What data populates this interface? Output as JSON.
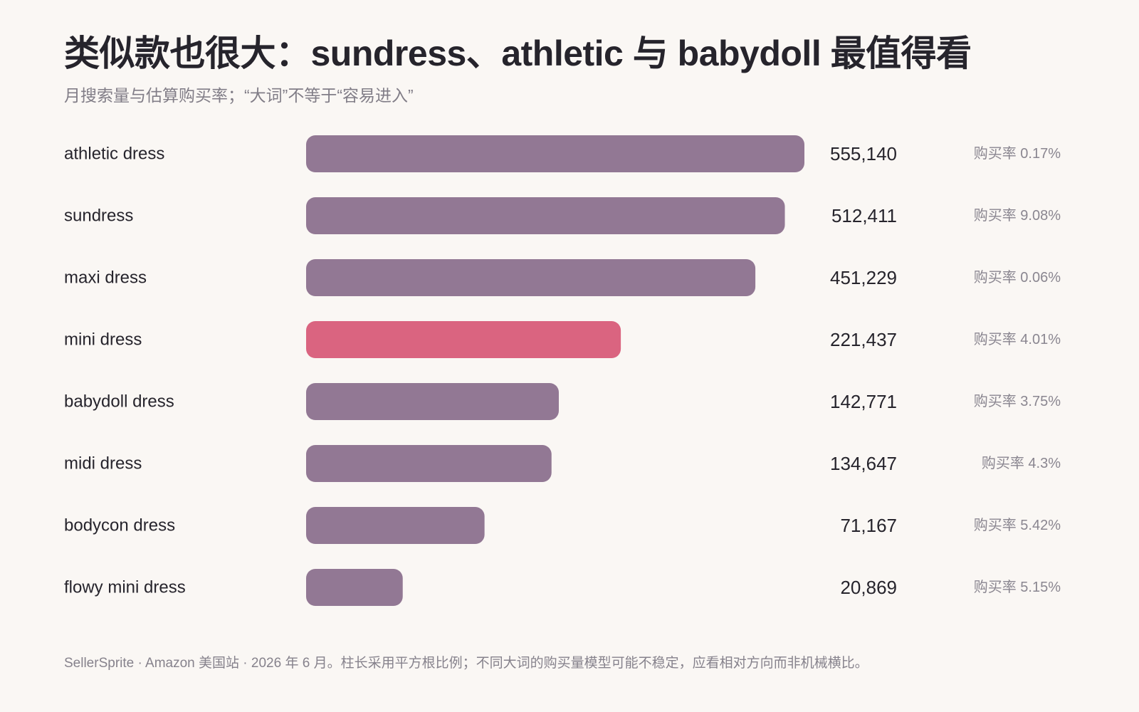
{
  "title": "类似款也很大：sundress、athletic 与 babydoll 最值得看",
  "subtitle": "月搜索量与估算购买率；“大词”不等于“容易进入”",
  "footnote": "SellerSprite · Amazon 美国站 · 2026 年 6 月。柱长采用平方根比例；不同大词的购买量模型可能不稳定，应看相对方向而非机械横比。",
  "colors": {
    "bar_default": "#927894",
    "bar_highlight": "#da6480",
    "background": "#faf7f4"
  },
  "chart_data": {
    "type": "bar",
    "orientation": "horizontal",
    "scale": "sqrt",
    "categories": [
      "athletic dress",
      "sundress",
      "maxi dress",
      "mini dress",
      "babydoll dress",
      "midi dress",
      "bodycon dress",
      "flowy mini dress"
    ],
    "values": [
      555140,
      512411,
      451229,
      221437,
      142771,
      134647,
      71167,
      20869
    ],
    "value_labels": [
      "555,140",
      "512,411",
      "451,229",
      "221,437",
      "142,771",
      "134,647",
      "71,167",
      "20,869"
    ],
    "rate_labels": [
      "购买率 0.17%",
      "购买率 9.08%",
      "购买率 0.06%",
      "购买率 4.01%",
      "购买率 3.75%",
      "购买率 4.3%",
      "购买率 5.42%",
      "购买率 5.15%"
    ],
    "highlight": "mini dress",
    "grid": false
  }
}
